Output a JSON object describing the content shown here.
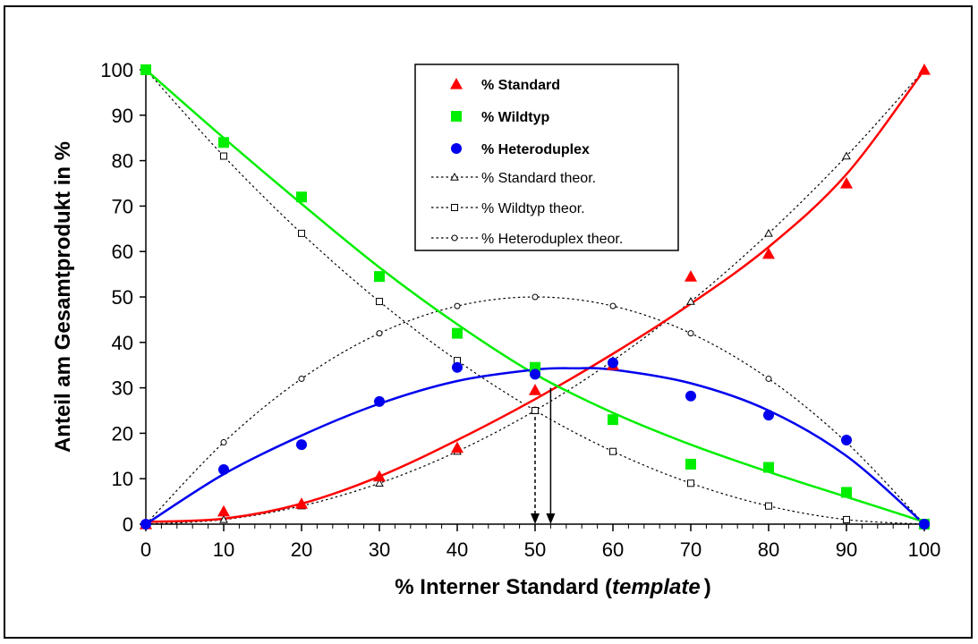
{
  "chart_data": {
    "type": "scatter",
    "xlabel_main": "% Interner Standard (",
    "xlabel_italic": "template",
    "xlabel_end": ")",
    "ylabel": "Anteil am Gesamtprodukt in %",
    "xlim": [
      0,
      100
    ],
    "ylim": [
      0,
      100
    ],
    "x_ticks": [
      0,
      10,
      20,
      30,
      40,
      50,
      60,
      70,
      80,
      90,
      100
    ],
    "y_ticks": [
      0,
      10,
      20,
      30,
      40,
      50,
      60,
      70,
      80,
      90,
      100
    ],
    "grid": false,
    "legend_position": "top-center",
    "series": [
      {
        "name": "% Standard",
        "kind": "measured",
        "marker": "triangle",
        "color": "#ff0000",
        "x": [
          0,
          10,
          20,
          30,
          40,
          50,
          60,
          70,
          80,
          90,
          100
        ],
        "y": [
          0,
          2.8,
          4.5,
          10.5,
          16.8,
          29.5,
          35,
          54.5,
          59.5,
          75,
          100
        ]
      },
      {
        "name": "% Wildtyp",
        "kind": "measured",
        "marker": "square",
        "color": "#00ee00",
        "x": [
          0,
          10,
          20,
          30,
          40,
          50,
          60,
          70,
          80,
          90,
          100
        ],
        "y": [
          100,
          84,
          72,
          54.5,
          42,
          34.5,
          23,
          13.2,
          12.5,
          7,
          0
        ]
      },
      {
        "name": "% Heteroduplex",
        "kind": "measured",
        "marker": "circle",
        "color": "#0000ee",
        "x": [
          0,
          10,
          20,
          30,
          40,
          50,
          60,
          70,
          80,
          90,
          100
        ],
        "y": [
          0,
          12,
          17.5,
          27,
          34.5,
          33,
          35.5,
          28.2,
          24,
          18.5,
          0
        ]
      },
      {
        "name": "% Standard theor.",
        "kind": "theoretical",
        "marker": "open-triangle",
        "color": "#000000",
        "x": [
          0,
          10,
          20,
          30,
          40,
          50,
          60,
          70,
          80,
          90,
          100
        ],
        "y": [
          0,
          1,
          4,
          9,
          16,
          25,
          36,
          49,
          64,
          81,
          100
        ]
      },
      {
        "name": "% Wildtyp theor.",
        "kind": "theoretical",
        "marker": "open-square",
        "color": "#000000",
        "x": [
          0,
          10,
          20,
          30,
          40,
          50,
          60,
          70,
          80,
          90,
          100
        ],
        "y": [
          100,
          81,
          64,
          49,
          36,
          25,
          16,
          9,
          4,
          1,
          0
        ]
      },
      {
        "name": "% Heteroduplex theor.",
        "kind": "theoretical",
        "marker": "open-circle",
        "color": "#000000",
        "x": [
          0,
          10,
          20,
          30,
          40,
          50,
          60,
          70,
          80,
          90,
          100
        ],
        "y": [
          0,
          18,
          32,
          42,
          48,
          50,
          48,
          42,
          32,
          18,
          0
        ]
      }
    ],
    "trend_curves": [
      {
        "series": "% Standard",
        "color": "#ff0000",
        "x": [
          0,
          10,
          20,
          30,
          40,
          50,
          60,
          70,
          80,
          90,
          100
        ],
        "y": [
          0.5,
          1.2,
          4.5,
          10.5,
          18.5,
          27.5,
          37.5,
          48.5,
          61,
          77,
          100
        ]
      },
      {
        "series": "% Wildtyp",
        "color": "#00ee00",
        "x": [
          0,
          10,
          20,
          30,
          40,
          50,
          60,
          70,
          80,
          90,
          100
        ],
        "y": [
          100,
          85,
          70.5,
          56.5,
          44,
          33,
          24.5,
          17.5,
          11.5,
          6,
          0.5
        ]
      },
      {
        "series": "% Heteroduplex",
        "color": "#0000ee",
        "x": [
          0,
          10,
          20,
          30,
          40,
          50,
          55,
          60,
          70,
          80,
          90,
          100
        ],
        "y": [
          0,
          11,
          19.5,
          26.5,
          31.5,
          34,
          34.3,
          34,
          31,
          25,
          15,
          0
        ]
      }
    ],
    "arrows": [
      {
        "x": 50,
        "from_y": 25,
        "to_y": 0,
        "style": "dashed"
      },
      {
        "x": 52,
        "from_y": 30,
        "to_y": 0,
        "style": "solid"
      }
    ]
  }
}
